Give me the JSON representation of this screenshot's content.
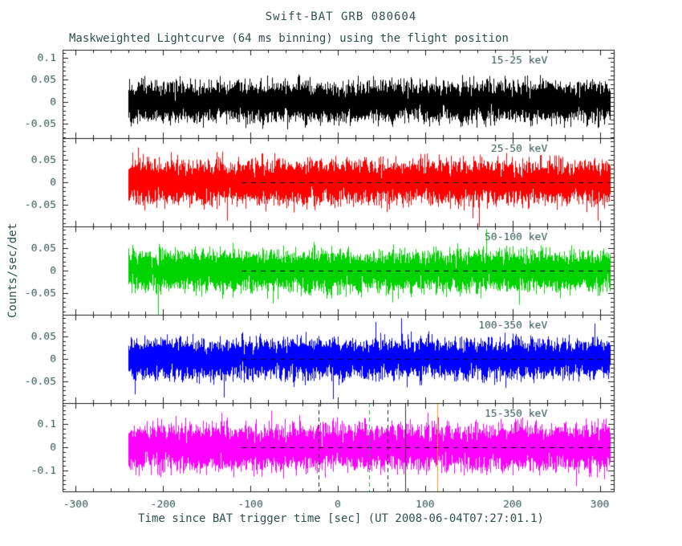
{
  "title": "Swift-BAT GRB 080604",
  "subtitle": "Maskweighted Lightcurve (64 ms binning) using the flight position",
  "xlabel": "Time since BAT trigger time [sec] (UT 2008-06-04T07:27:01.1)",
  "ylabel": "Counts/sec/det",
  "chart_data": {
    "type": "line",
    "x_range": [
      -315,
      316
    ],
    "x_ticks": [
      -300,
      -200,
      -100,
      0,
      100,
      200,
      300
    ],
    "x_minor_step": 20,
    "data_x_start": -240,
    "data_x_end": 311,
    "bin_sec": 0.064,
    "text_color": "#2f4f4f",
    "frame_color": "#1a1a1a",
    "zero_dash_x_start": -110,
    "panels": [
      {
        "band": "15-25 keV",
        "color": "#000000",
        "y_range": [
          -0.082,
          0.118
        ],
        "y_ticks": [
          -0.05,
          0,
          0.05,
          0.1
        ],
        "y_minor_step": 0.01,
        "noise_sigma": 0.021,
        "seed": 11,
        "zero_dash": false
      },
      {
        "band": "25-50 keV",
        "color": "#ff0000",
        "y_range": [
          -0.098,
          0.098
        ],
        "y_ticks": [
          -0.05,
          0,
          0.05
        ],
        "y_minor_step": 0.01,
        "noise_sigma": 0.022,
        "seed": 22,
        "zero_dash": true
      },
      {
        "band": "50-100 keV",
        "color": "#00d400",
        "y_range": [
          -0.098,
          0.098
        ],
        "y_ticks": [
          -0.05,
          0,
          0.05
        ],
        "y_minor_step": 0.01,
        "noise_sigma": 0.021,
        "seed": 33,
        "zero_dash": true
      },
      {
        "band": "100-350 keV",
        "color": "#0000ff",
        "y_range": [
          -0.098,
          0.098
        ],
        "y_ticks": [
          -0.05,
          0,
          0.05
        ],
        "y_minor_step": 0.01,
        "noise_sigma": 0.02,
        "seed": 44,
        "zero_dash": true
      },
      {
        "band": "15-350 keV",
        "color": "#ff00ff",
        "y_range": [
          -0.19,
          0.19
        ],
        "y_ticks": [
          -0.1,
          0,
          0.1
        ],
        "y_minor_step": 0.02,
        "noise_sigma": 0.045,
        "seed": 55,
        "zero_dash": true
      }
    ],
    "vertical_markers": [
      {
        "panel": 4,
        "x": -22,
        "color": "#1a1a1a",
        "style": "dashed"
      },
      {
        "panel": 4,
        "x": 36,
        "color": "#00bb33",
        "style": "dashed"
      },
      {
        "panel": 4,
        "x": 57,
        "color": "#1a1a1a",
        "style": "dashed"
      },
      {
        "panel": 4,
        "x": 77,
        "color": "#333333",
        "style": "solid"
      },
      {
        "panel": 4,
        "x": 114,
        "color": "#ff9900",
        "style": "solid"
      }
    ]
  }
}
